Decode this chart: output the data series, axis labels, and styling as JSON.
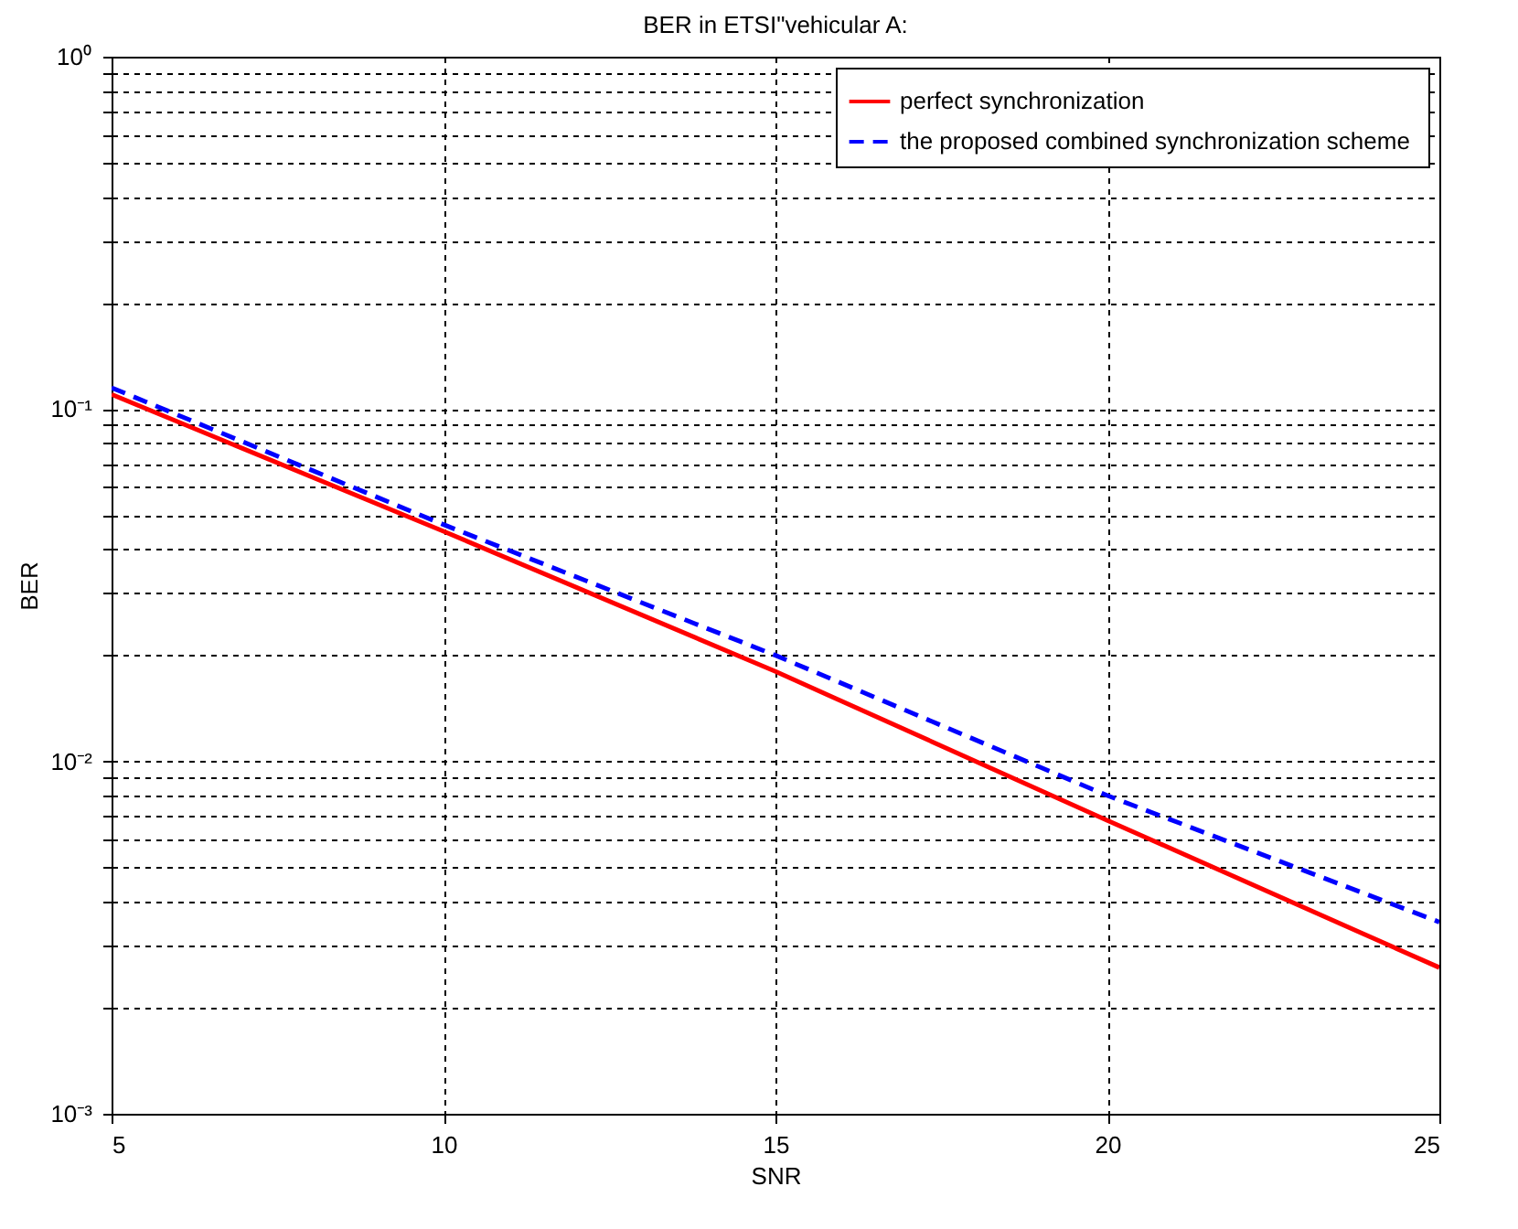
{
  "chart_data": {
    "type": "line",
    "title": "BER in ETSI\"vehicular A:",
    "xlabel": "SNR",
    "ylabel": "BER",
    "x": [
      5,
      10,
      15,
      20,
      25
    ],
    "series": [
      {
        "name": "perfect synchronization",
        "color": "#ff0000",
        "line_style": "solid",
        "values": [
          0.11,
          0.045,
          0.018,
          0.0068,
          0.0026
        ]
      },
      {
        "name": "the proposed combined synchronization  scheme",
        "color": "#0000ff",
        "line_style": "dashed",
        "values": [
          0.115,
          0.047,
          0.02,
          0.008,
          0.0035
        ]
      }
    ],
    "log": "y",
    "xlim": [
      5,
      25
    ],
    "xticks": [
      5,
      10,
      15,
      20,
      25
    ],
    "ylim": [
      0.001,
      1
    ],
    "yticks": [
      {
        "value": 0.001,
        "label": "10⁻³"
      },
      {
        "value": 0.002,
        "label": null
      },
      {
        "value": 0.003,
        "label": null
      },
      {
        "value": 0.004,
        "label": null
      },
      {
        "value": 0.005,
        "label": null
      },
      {
        "value": 0.006,
        "label": null
      },
      {
        "value": 0.007,
        "label": null
      },
      {
        "value": 0.008,
        "label": null
      },
      {
        "value": 0.009,
        "label": null
      },
      {
        "value": 0.01,
        "label": "10⁻²"
      },
      {
        "value": 0.02,
        "label": null
      },
      {
        "value": 0.03,
        "label": null
      },
      {
        "value": 0.04,
        "label": null
      },
      {
        "value": 0.05,
        "label": null
      },
      {
        "value": 0.06,
        "label": null
      },
      {
        "value": 0.07,
        "label": null
      },
      {
        "value": 0.08,
        "label": null
      },
      {
        "value": 0.09,
        "label": null
      },
      {
        "value": 0.1,
        "label": "10⁻¹"
      },
      {
        "value": 0.2,
        "label": null
      },
      {
        "value": 0.3,
        "label": null
      },
      {
        "value": 0.4,
        "label": null
      },
      {
        "value": 0.5,
        "label": null
      },
      {
        "value": 0.6,
        "label": null
      },
      {
        "value": 0.7,
        "label": null
      },
      {
        "value": 0.8,
        "label": null
      },
      {
        "value": 0.9,
        "label": null
      },
      {
        "value": 1,
        "label": "10⁰"
      }
    ],
    "grid": true,
    "legend": "top right"
  }
}
